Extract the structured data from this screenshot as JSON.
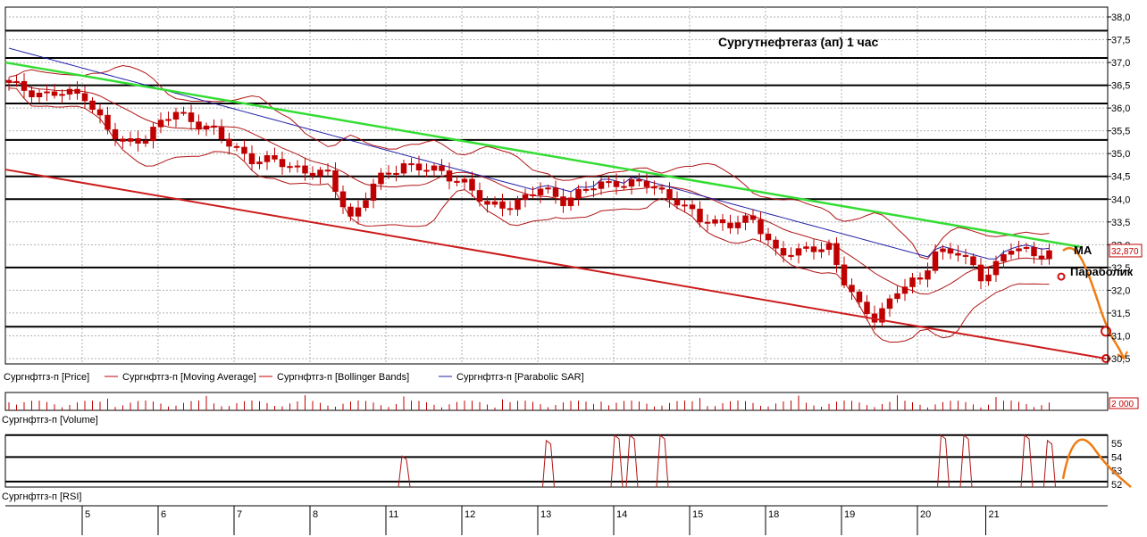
{
  "chart_data": {
    "type": "candlestick",
    "title": "Сургутнефтегаз (ап)   1 час",
    "y_range": [
      30.5,
      38.0
    ],
    "y_ticks": [
      "38,0",
      "37,5",
      "37,0",
      "36,5",
      "36,0",
      "35,5",
      "35,0",
      "34,5",
      "34,0",
      "33,5",
      "33,0",
      "32,5",
      "32,0",
      "31,5",
      "31,0",
      "30,5"
    ],
    "last_price_label": "32,870",
    "last_price": 32.87,
    "x_ticks": [
      "5",
      "6",
      "7",
      "8",
      "11",
      "12",
      "13",
      "14",
      "15",
      "18",
      "19",
      "20",
      "21"
    ],
    "x_count": 142,
    "x_tick_index": [
      10,
      20,
      30,
      40,
      50,
      60,
      70,
      80,
      90,
      100,
      110,
      120,
      129
    ],
    "series_legend": [
      {
        "name": "Сургнфтгз-п [Price]",
        "color": "#c00000"
      },
      {
        "name": "Сургнфтгз-п [Moving Average]",
        "color": "#c00000"
      },
      {
        "name": "Сургнфтгз-п [Bollinger Bands]",
        "color": "#c00000"
      },
      {
        "name": "Сургнфтгз-п [Parabolic SAR]",
        "color": "#1f1fa8"
      }
    ],
    "horizontal_levels": [
      37.7,
      37.1,
      36.5,
      36.1,
      35.3,
      34.5,
      34.0,
      32.5,
      31.2
    ],
    "close_anchors": [
      [
        0,
        36.5
      ],
      [
        5,
        36.3
      ],
      [
        10,
        36.3
      ],
      [
        13,
        35.5
      ],
      [
        15,
        35.2
      ],
      [
        18,
        35.4
      ],
      [
        22,
        35.9
      ],
      [
        26,
        35.6
      ],
      [
        28,
        35.3
      ],
      [
        32,
        34.9
      ],
      [
        35,
        34.8
      ],
      [
        38,
        34.7
      ],
      [
        42,
        34.5
      ],
      [
        45,
        33.6
      ],
      [
        48,
        34.3
      ],
      [
        52,
        34.8
      ],
      [
        56,
        34.6
      ],
      [
        60,
        34.4
      ],
      [
        63,
        33.8
      ],
      [
        66,
        33.9
      ],
      [
        70,
        34.2
      ],
      [
        73,
        34.0
      ],
      [
        76,
        34.2
      ],
      [
        80,
        34.4
      ],
      [
        84,
        34.3
      ],
      [
        88,
        34.0
      ],
      [
        91,
        33.5
      ],
      [
        94,
        33.5
      ],
      [
        98,
        33.5
      ],
      [
        101,
        32.9
      ],
      [
        104,
        32.8
      ],
      [
        108,
        33.0
      ],
      [
        110,
        32.2
      ],
      [
        112,
        31.6
      ],
      [
        114,
        31.4
      ],
      [
        117,
        32.0
      ],
      [
        120,
        32.2
      ],
      [
        122,
        32.9
      ],
      [
        125,
        32.8
      ],
      [
        128,
        32.3
      ],
      [
        130,
        32.6
      ],
      [
        132,
        32.9
      ],
      [
        135,
        32.8
      ],
      [
        137,
        32.87
      ]
    ],
    "volume": {
      "label": "Сургнфтгз-п [Volume]",
      "scale_label": "2 000"
    },
    "rsi": {
      "label": "Сургнфтгз-п [RSI]",
      "y_range": [
        51.5,
        56.0
      ],
      "y_ticks": [
        "55",
        "54",
        "53",
        "52"
      ],
      "levels": [
        55.6,
        54.0,
        52.2
      ]
    },
    "annotations": {
      "ma": "MA",
      "sar": "Параболик"
    },
    "colors": {
      "up": "#c00000",
      "down": "#c00000",
      "trend_upper": "#33dd33",
      "trend_lower": "#cc1c1c",
      "forecast": "#f07c12",
      "sar": "#1f1fa8",
      "grid": "#b0b0b0"
    }
  }
}
